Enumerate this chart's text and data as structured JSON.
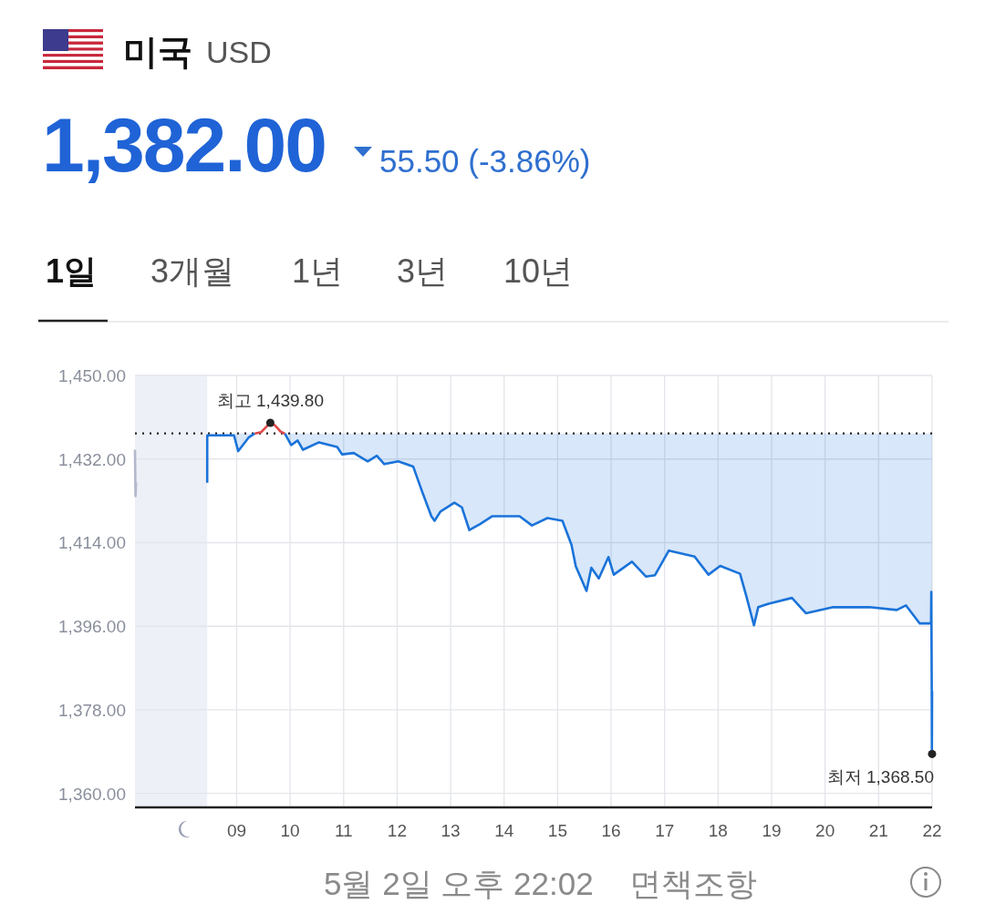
{
  "chart_data": {
    "type": "line",
    "title": "미국",
    "subtitle": "USD",
    "xlim": [
      7.1,
      22.0
    ],
    "xticks": [
      {
        "value": 9,
        "label": "09"
      },
      {
        "value": 10,
        "label": "10"
      },
      {
        "value": 11,
        "label": "11"
      },
      {
        "value": 12,
        "label": "12"
      },
      {
        "value": 13,
        "label": "13"
      },
      {
        "value": 14,
        "label": "14"
      },
      {
        "value": 15,
        "label": "15"
      },
      {
        "value": 16,
        "label": "16"
      },
      {
        "value": 17,
        "label": "17"
      },
      {
        "value": 18,
        "label": "18"
      },
      {
        "value": 19,
        "label": "19"
      },
      {
        "value": 20,
        "label": "20"
      },
      {
        "value": 21,
        "label": "21"
      },
      {
        "value": 22,
        "label": "22"
      }
    ],
    "ylim": [
      1357,
      1450
    ],
    "yticks": [
      {
        "value": 1360,
        "label": "1,360.00"
      },
      {
        "value": 1378,
        "label": "1,378.00"
      },
      {
        "value": 1396,
        "label": "1,396.00"
      },
      {
        "value": 1414,
        "label": "1,414.00"
      },
      {
        "value": 1432,
        "label": "1,432.00"
      },
      {
        "value": 1450,
        "label": "1,450.00"
      }
    ],
    "grid": true,
    "marker": "none",
    "line_style": "solid",
    "series": [
      {
        "color": "#1a73d9",
        "upper": [
          null,
          1437.5,
          1437.5,
          1437.5,
          1437.5,
          1437.5,
          null,
          1437.5,
          1437.5,
          1437.5,
          1437.5,
          1437.5,
          1437.5,
          1437.5,
          1437.5,
          1437.5,
          1437.5,
          1437.5,
          1437.5,
          1437.5,
          1437.5,
          1437.5,
          1437.5,
          1437.5,
          1437.5,
          1437.5,
          1437.5,
          1437.5,
          1437.5,
          1437.5,
          1437.5,
          1437.5,
          1437.5,
          1437.5,
          1437.5,
          1437.5,
          1437.5,
          1437.5,
          1437.5,
          1437.5,
          1437.5,
          1437.5,
          1437.5,
          1437.5,
          1437.5,
          1437.5,
          1437.5,
          1437.5,
          1437.5,
          1437.5,
          1437.5,
          1437.5,
          1437.5,
          1437.5,
          1437.5,
          1437.5,
          1437.5,
          1437.5,
          1437.5,
          1437.5,
          1437.5,
          1437.5,
          1437.5,
          1437.5,
          1437.5,
          1437.5
        ],
        "lower": [
          null,
          1437.1,
          1437.1,
          1433.7,
          1436.7,
          1437.5,
          null,
          1437.5,
          1435.0,
          1436.0,
          1434.0,
          1435.6,
          1434.6,
          1433.0,
          1433.3,
          1431.5,
          1432.7,
          1430.9,
          1431.5,
          1430.4,
          1424.9,
          1419.7,
          1418.7,
          1420.7,
          1422.6,
          1421.6,
          1416.7,
          1418.0,
          1419.7,
          1419.7,
          1417.7,
          1419.3,
          1418.7,
          1413.5,
          1408.9,
          1403.6,
          1408.6,
          1406.3,
          1410.9,
          1407.1,
          1409.9,
          1406.7,
          1407.0,
          1412.3,
          1411.0,
          1407.1,
          1409.0,
          1407.3,
          1402.4,
          1396.2,
          1400.1,
          1400.8,
          1402.1,
          1398.8,
          1400.1,
          1400.1,
          1400.1,
          1399.5,
          1400.5,
          1396.6,
          1396.6,
          1403.4,
          1391.0,
          1383.0,
          1368.5,
          1382.0
        ],
        "x": [
          8.45,
          8.451,
          8.95,
          9.03,
          9.23,
          9.34,
          9.6,
          9.9,
          10.02,
          10.14,
          10.24,
          10.54,
          10.88,
          10.97,
          11.19,
          11.45,
          11.62,
          11.76,
          12.02,
          12.3,
          12.47,
          12.64,
          12.7,
          12.81,
          13.07,
          13.21,
          13.35,
          13.55,
          13.78,
          14.29,
          14.52,
          14.81,
          15.09,
          15.26,
          15.34,
          15.54,
          15.63,
          15.77,
          15.95,
          16.05,
          16.39,
          16.65,
          16.82,
          17.08,
          17.56,
          17.82,
          18.04,
          18.41,
          18.53,
          18.67,
          18.75,
          18.93,
          19.38,
          19.64,
          20.15,
          20.49,
          20.83,
          21.34,
          21.51,
          21.77,
          21.98,
          21.985,
          21.99,
          21.993,
          21.996,
          22.0
        ],
        "values": [
          1426.9,
          1437.1,
          1437.1,
          1433.7,
          1436.7,
          1437.5,
          null,
          1437.5,
          1435.0,
          1436.0,
          1434.0,
          1435.6,
          1434.6,
          1433.0,
          1433.3,
          1431.5,
          1432.7,
          1430.9,
          1431.5,
          1430.4,
          1424.9,
          1419.7,
          1418.7,
          1420.7,
          1422.6,
          1421.6,
          1416.7,
          1418.0,
          1419.7,
          1419.7,
          1417.7,
          1419.3,
          1418.7,
          1413.5,
          1408.9,
          1403.6,
          1408.6,
          1406.3,
          1410.9,
          1407.1,
          1409.9,
          1406.7,
          1407.0,
          1412.3,
          1411.0,
          1407.1,
          1409.0,
          1407.3,
          1402.4,
          1396.2,
          1400.1,
          1400.8,
          1402.1,
          1398.8,
          1400.1,
          1400.1,
          1400.1,
          1399.5,
          1400.5,
          1396.6,
          1396.6,
          1403.4,
          1391.0,
          1383.0,
          1368.5,
          1382.0
        ]
      },
      {
        "type": "line",
        "color": "#e04848",
        "x": [
          9.34,
          9.46,
          9.55,
          9.63,
          9.71,
          9.77,
          9.82,
          9.9
        ],
        "values": [
          1437.5,
          1437.8,
          1438.9,
          1439.8,
          1439.3,
          1438.6,
          1437.9,
          1437.5
        ]
      },
      {
        "type": "line",
        "color": "#b4b8cc",
        "x": [
          7.1,
          7.11,
          7.12
        ],
        "values": [
          1434.0,
          1424.0,
          1427.0
        ]
      }
    ],
    "ref_lines": [
      {
        "axis": "y",
        "value": 1437.5,
        "color": "#222222",
        "line_style": "dotted"
      }
    ],
    "bands": [
      {
        "axis": "x",
        "from": 7.1,
        "to": 8.45,
        "color": "#eef0f8"
      }
    ],
    "annotations": [
      "1,382.00",
      "55.50 (-3.86%)",
      "1일",
      "3개월",
      "1년",
      "3년",
      "10년",
      "5월 2일 오후 22:02",
      "면책조항",
      {
        "text": "최고 1,439.80",
        "x": 9.63,
        "y": 1439.8
      },
      {
        "text": "최저 1,368.50",
        "x": 22.0,
        "y": 1368.5
      }
    ]
  }
}
